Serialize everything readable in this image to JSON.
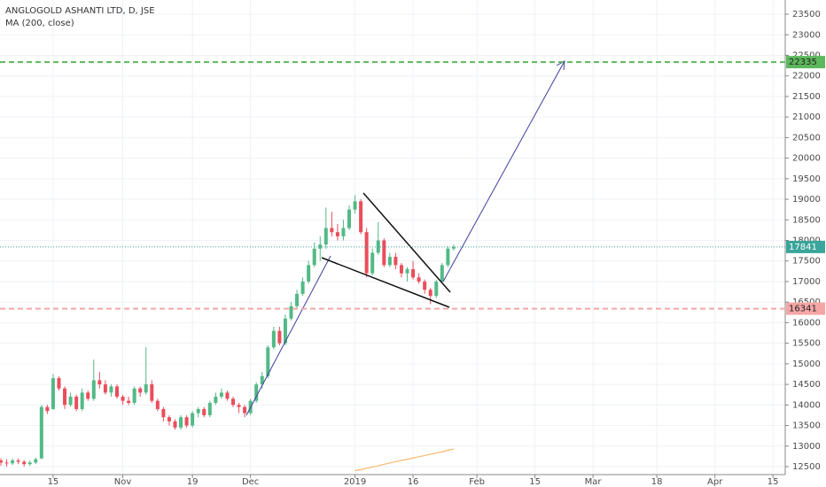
{
  "chart_data": {
    "type": "candlestick",
    "title": "ANGLOGOLD ASHANTI LTD, D, JSE",
    "indicator": "MA (200, close)",
    "x": [
      0,
      1,
      2,
      3,
      4,
      5,
      6,
      7,
      8,
      9,
      10,
      11,
      12,
      13,
      14,
      15,
      16,
      17,
      18,
      19,
      20,
      21,
      22,
      23,
      24,
      25,
      26,
      27,
      28,
      29,
      30,
      31,
      32,
      33,
      34,
      35,
      36,
      37,
      38,
      39,
      40,
      41,
      42,
      43,
      44,
      45,
      46,
      47,
      48,
      49,
      50,
      51,
      52,
      53,
      54,
      55,
      56,
      57,
      58,
      59,
      60,
      61,
      62,
      63,
      64,
      65,
      66,
      67,
      68,
      69,
      70,
      71,
      72,
      73,
      74,
      75,
      76,
      77,
      78
    ],
    "open": [
      12650,
      12600,
      12580,
      12650,
      12620,
      12560,
      12600,
      12700,
      13950,
      13900,
      14650,
      14400,
      14000,
      14200,
      13900,
      14300,
      14150,
      14600,
      14500,
      14300,
      14450,
      14200,
      14100,
      14050,
      14400,
      14300,
      14500,
      14100,
      13900,
      13700,
      13600,
      13450,
      13700,
      13500,
      13800,
      13900,
      13750,
      14050,
      14200,
      14300,
      14150,
      14000,
      13950,
      13800,
      14100,
      14500,
      14700,
      15400,
      15800,
      15500,
      16100,
      16400,
      16700,
      17000,
      17400,
      17800,
      17900,
      18300,
      18200,
      18100,
      18300,
      18750,
      18950,
      18200,
      17200,
      17700,
      18000,
      17400,
      17600,
      17400,
      17200,
      17300,
      17100,
      17000,
      16800,
      16650,
      17000,
      17400,
      17800
    ],
    "high": [
      12700,
      12680,
      12700,
      12700,
      12660,
      12650,
      12720,
      14000,
      14000,
      14750,
      14700,
      14450,
      14300,
      14250,
      14400,
      14350,
      15100,
      14800,
      14600,
      14500,
      14500,
      14250,
      14200,
      14450,
      14450,
      15400,
      14600,
      14150,
      13950,
      13750,
      13650,
      13750,
      13750,
      13850,
      13950,
      13950,
      14100,
      14300,
      14400,
      14350,
      14200,
      14050,
      14000,
      14150,
      14550,
      14800,
      15450,
      15900,
      15900,
      16200,
      16500,
      16800,
      17100,
      17500,
      17950,
      18100,
      18800,
      18700,
      18400,
      18500,
      18850,
      19100,
      19000,
      18300,
      17800,
      18450,
      18050,
      17700,
      17700,
      17450,
      17350,
      17500,
      17200,
      17050,
      16850,
      17050,
      17450,
      17850,
      17900
    ],
    "low": [
      12520,
      12500,
      12540,
      12560,
      12500,
      12520,
      12560,
      12680,
      13780,
      13880,
      14350,
      13900,
      13950,
      13850,
      13850,
      14100,
      14100,
      14400,
      14250,
      14200,
      14150,
      14000,
      14000,
      14000,
      14200,
      14250,
      14050,
      13850,
      13600,
      13500,
      13400,
      13400,
      13450,
      13450,
      13700,
      13700,
      13700,
      14000,
      14150,
      14100,
      13950,
      13800,
      13700,
      13750,
      14050,
      14400,
      14650,
      15350,
      15450,
      15450,
      16050,
      16350,
      16650,
      16950,
      17350,
      17500,
      17800,
      18100,
      18000,
      18000,
      18250,
      18650,
      18150,
      17100,
      17150,
      17650,
      17350,
      17350,
      17300,
      17100,
      17000,
      17050,
      16950,
      16700,
      16450,
      16600,
      16950,
      17350,
      17750
    ],
    "close": [
      12600,
      12580,
      12650,
      12620,
      12560,
      12600,
      12680,
      13950,
      13850,
      14650,
      14400,
      14000,
      14200,
      13900,
      14300,
      14150,
      14600,
      14500,
      14300,
      14450,
      14200,
      14100,
      14050,
      14400,
      14300,
      14500,
      14100,
      13900,
      13700,
      13600,
      13450,
      13700,
      13500,
      13800,
      13900,
      13750,
      14050,
      14200,
      14300,
      14150,
      14000,
      13950,
      13800,
      14100,
      14500,
      14700,
      15400,
      15800,
      15500,
      16100,
      16400,
      16700,
      17000,
      17400,
      17800,
      17900,
      18300,
      18200,
      18100,
      18300,
      18750,
      18950,
      18200,
      17200,
      17700,
      18000,
      17400,
      17600,
      17400,
      17200,
      17300,
      17100,
      17000,
      16800,
      16650,
      17000,
      17400,
      17800,
      17841
    ],
    "up_color": "#53b987",
    "down_color": "#eb4d5c",
    "ma": {
      "color": "#f7b86b",
      "values": [
        null,
        null,
        null,
        null,
        null,
        null,
        null,
        null,
        null,
        null,
        null,
        null,
        null,
        null,
        null,
        null,
        null,
        null,
        null,
        null,
        null,
        null,
        null,
        null,
        null,
        null,
        null,
        null,
        null,
        null,
        null,
        null,
        null,
        null,
        null,
        null,
        null,
        null,
        null,
        null,
        null,
        null,
        null,
        null,
        null,
        null,
        null,
        null,
        null,
        null,
        null,
        null,
        null,
        null,
        null,
        null,
        null,
        null,
        null,
        null,
        null,
        12400,
        12430,
        12460,
        12490,
        12520,
        12555,
        12590,
        12620,
        12650,
        12680,
        12710,
        12740,
        12770,
        12800,
        12830,
        12860,
        12895,
        12930
      ]
    },
    "hlines": [
      {
        "value": 22335,
        "color": "#5cb85c"
      },
      {
        "value": 16341,
        "color": "#f4a6a6"
      }
    ],
    "xlim": [
      -0.15,
      135.11
    ],
    "xticks": [
      {
        "value": 9,
        "label": "15"
      },
      {
        "value": 21,
        "label": "Nov"
      },
      {
        "value": 33,
        "label": "19"
      },
      {
        "value": 43,
        "label": "Dec"
      },
      {
        "value": 61,
        "label": "2019"
      },
      {
        "value": 71,
        "label": "16"
      },
      {
        "value": 82,
        "label": "Feb"
      },
      {
        "value": 92,
        "label": "15"
      },
      {
        "value": 102,
        "label": "Mar"
      },
      {
        "value": 113,
        "label": "18"
      },
      {
        "value": 123,
        "label": "Apr"
      },
      {
        "value": 133,
        "label": "15"
      }
    ],
    "ylim": [
      12306,
      23845
    ],
    "yticks": [
      12500,
      13000,
      13500,
      14000,
      14500,
      15000,
      15500,
      16000,
      16500,
      17000,
      17500,
      18000,
      18500,
      19000,
      19500,
      20000,
      20500,
      21000,
      21500,
      22000,
      22500,
      23000,
      23500
    ],
    "grid": true
  }
}
